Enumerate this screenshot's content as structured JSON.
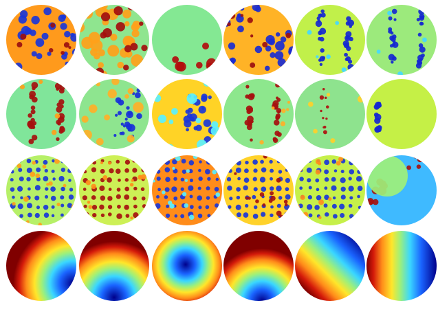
{
  "figure": {
    "rows": [
      {
        "kind": "spots",
        "panels": [
          {
            "base": "#ff9a1c",
            "spots": "#1a36d8",
            "accent": "#9b0f10",
            "style": "dense"
          },
          {
            "base": "#8fe58f",
            "spots": "#ffa11a",
            "accent": "#a40d0d",
            "style": "blob"
          },
          {
            "base": "#84e893",
            "spots": "#b20d0d",
            "accent": "#ff9e1a",
            "style": "sparse-bottom"
          },
          {
            "base": "#ffb326",
            "spots": "#1b2cd1",
            "accent": "#9b0f10",
            "style": "dense"
          },
          {
            "base": "#c1f04a",
            "spots": "#1628d0",
            "accent": "#45d8ff",
            "style": "stripes"
          },
          {
            "base": "#9cea7c",
            "spots": "#1628d0",
            "accent": "#45d8ff",
            "style": "stripes"
          }
        ]
      },
      {
        "kind": "stripes",
        "panels": [
          {
            "base": "#80e59a",
            "spots": "#a5110f",
            "accent": "#ffa01a",
            "style": "stripes"
          },
          {
            "base": "#8ee58f",
            "spots": "#1730d8",
            "accent": "#ffb028",
            "style": "mixed"
          },
          {
            "base": "#ffd326",
            "spots": "#1a36d8",
            "accent": "#5af0ff",
            "style": "mixed"
          },
          {
            "base": "#8de78d",
            "spots": "#a5110f",
            "accent": "#ffb028",
            "style": "stripes"
          },
          {
            "base": "#8ee38e",
            "spots": "#b00f0f",
            "accent": "#ffd02a",
            "style": "sparse-left"
          },
          {
            "base": "#c5f046",
            "spots": "#1628d0",
            "accent": "#45d8ff",
            "style": "single-stripe"
          }
        ]
      },
      {
        "kind": "grid",
        "panels": [
          {
            "base": "#b6f068",
            "spots": "#1a36d8",
            "accent": "#ffa01a",
            "style": "grid"
          },
          {
            "base": "#cdf056",
            "spots": "#a5110f",
            "accent": "#ff8e1a",
            "style": "grid"
          },
          {
            "base": "#ff8c1a",
            "spots": "#1a36d8",
            "accent": "#59f0ff",
            "style": "grid"
          },
          {
            "base": "#ffd22a",
            "spots": "#1a36d8",
            "accent": "#a5110f",
            "style": "grid"
          },
          {
            "base": "#c6f04a",
            "spots": "#1a36d8",
            "accent": "#ff8e1a",
            "style": "grid"
          },
          {
            "base": "#3fbaff",
            "spots": "#a5110f",
            "accent": "#9ef07a",
            "style": "corner"
          }
        ]
      },
      {
        "kind": "smooth",
        "panels": [
          {
            "base": "#800000",
            "cold": "#00008b",
            "type": "smooth-1"
          },
          {
            "base": "#800000",
            "cold": "#00008b",
            "type": "smooth-2"
          },
          {
            "base": "#800000",
            "cold": "#00008b",
            "type": "smooth-3"
          },
          {
            "base": "#800000",
            "cold": "#00008b",
            "type": "smooth-4"
          },
          {
            "base": "#800000",
            "cold": "#00008b",
            "type": "smooth-5"
          },
          {
            "base": "#800000",
            "cold": "#00008b",
            "type": "smooth-6"
          }
        ]
      }
    ]
  }
}
